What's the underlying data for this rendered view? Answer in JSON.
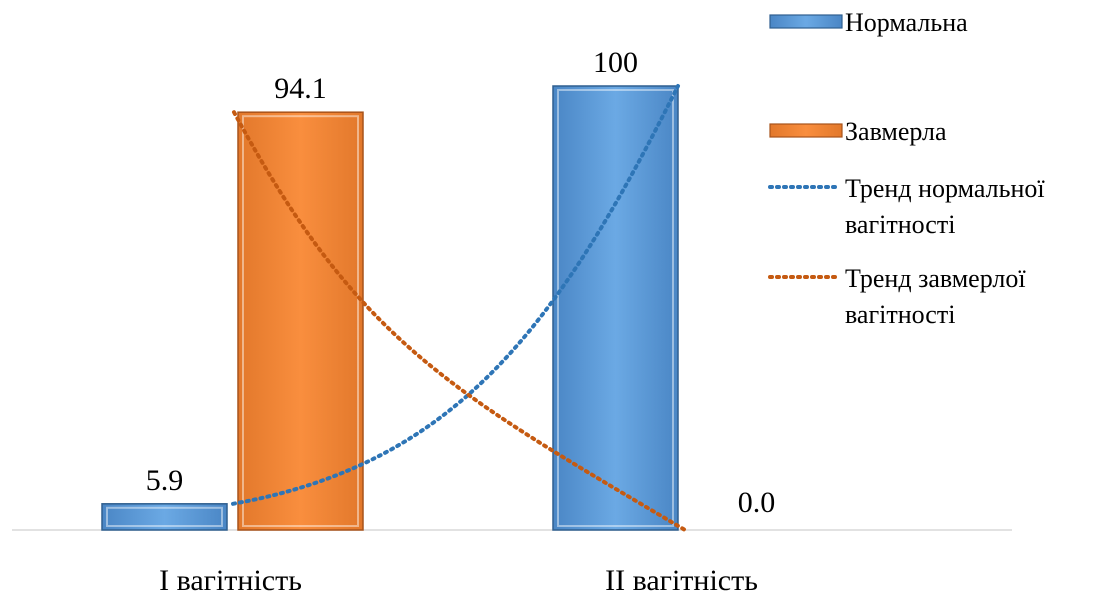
{
  "chart_data": {
    "type": "bar",
    "categories": [
      "I вагітність",
      "II вагітність"
    ],
    "series": [
      {
        "name": "Нормальна",
        "values": [
          5.9,
          100
        ],
        "labels": [
          "5.9",
          "100"
        ],
        "color": "#5B9BD5"
      },
      {
        "name": "Завмерла",
        "values": [
          94.1,
          0.0
        ],
        "labels": [
          "94.1",
          "0.0"
        ],
        "color": "#ED7D31"
      }
    ],
    "trendlines": [
      {
        "name": "Тренд нормальної вагітності",
        "series": "Нормальна",
        "style": "dotted",
        "color": "#2E75B6"
      },
      {
        "name": "Тренд завмерлої вагітності",
        "series": "Завмерла",
        "style": "dotted",
        "color": "#C55A11"
      }
    ],
    "ylim": [
      0,
      100
    ],
    "grid": false,
    "legend_position": "right"
  }
}
